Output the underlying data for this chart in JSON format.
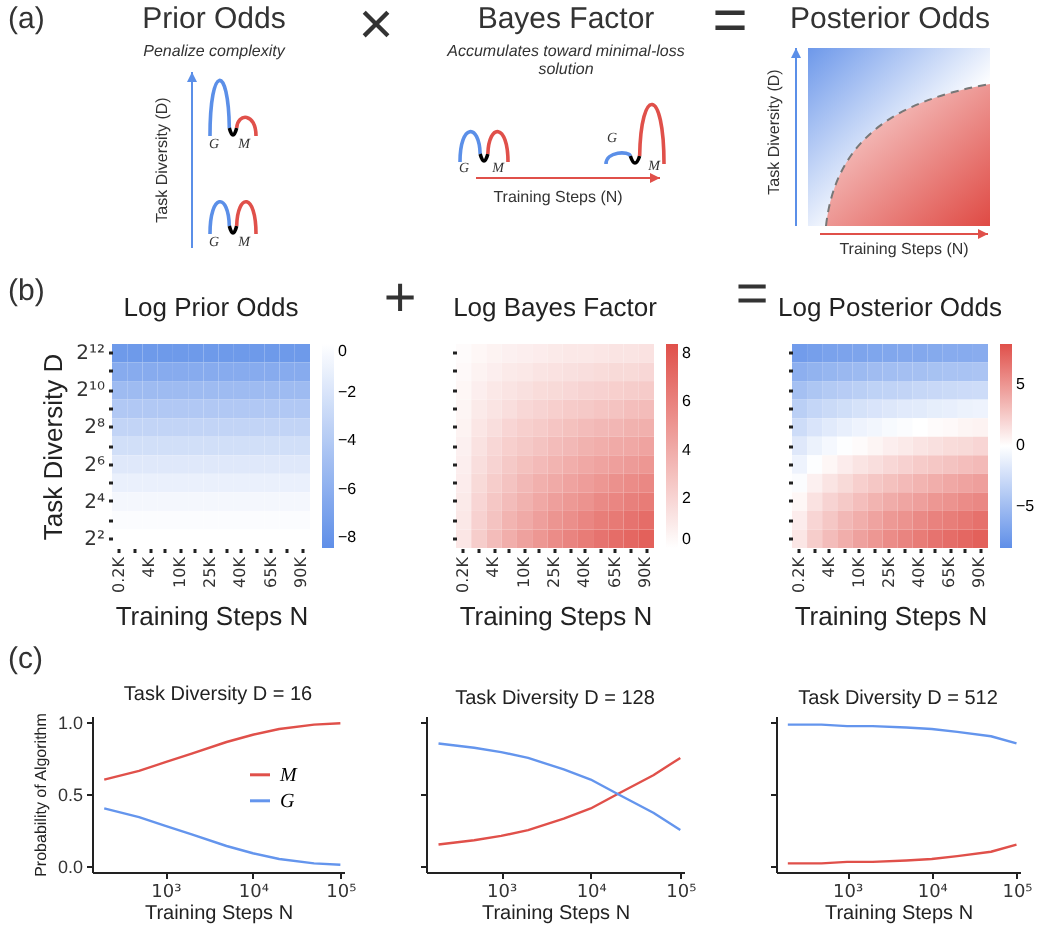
{
  "chart_data": [
    {
      "type": "other",
      "annotations": [
        "(a)",
        "Prior Odds",
        "Penalize complexity",
        "Task Diversity (D)",
        "G",
        "M",
        "G",
        "M",
        "×",
        "Bayes Factor",
        "Accumulates toward minimal-loss solution",
        "G",
        "M",
        "G",
        "M",
        "Training Steps (N)",
        "=",
        "Posterior Odds",
        "Task Diversity (D)",
        "Training Steps (N)"
      ]
    },
    {
      "type": "heatmap",
      "title": "Log Prior Odds",
      "xlabel": "Training Steps N",
      "ylabel": "Task Diversity D",
      "annotations": [
        "(b)",
        "+"
      ],
      "categories": [
        "0.2K",
        null,
        "4K",
        null,
        "10K",
        null,
        "25K",
        null,
        "40K",
        null,
        "65K",
        null,
        "90K"
      ],
      "y_categories": [
        "2¹²",
        null,
        "2¹⁰",
        null,
        "2⁸",
        null,
        "2⁶",
        null,
        "2⁴",
        null,
        "2²"
      ],
      "cells": [
        [
          -7.6,
          -7.6,
          -7.6,
          -7.6,
          -7.6,
          -7.6,
          -7.6,
          -7.6,
          -7.6,
          -7.6,
          -7.6,
          -7.6,
          -7.6
        ],
        [
          -6.3,
          -6.3,
          -6.3,
          -6.3,
          -6.3,
          -6.3,
          -6.3,
          -6.3,
          -6.3,
          -6.3,
          -6.3,
          -6.3,
          -6.3
        ],
        [
          -5.1,
          -5.1,
          -5.1,
          -5.1,
          -5.1,
          -5.1,
          -5.1,
          -5.1,
          -5.1,
          -5.1,
          -5.1,
          -5.1,
          -5.1
        ],
        [
          -4.1,
          -4.1,
          -4.1,
          -4.1,
          -4.1,
          -4.1,
          -4.1,
          -4.1,
          -4.1,
          -4.1,
          -4.1,
          -4.1,
          -4.1
        ],
        [
          -3.2,
          -3.2,
          -3.2,
          -3.2,
          -3.2,
          -3.2,
          -3.2,
          -3.2,
          -3.2,
          -3.2,
          -3.2,
          -3.2,
          -3.2
        ],
        [
          -2.4,
          -2.4,
          -2.4,
          -2.4,
          -2.4,
          -2.4,
          -2.4,
          -2.4,
          -2.4,
          -2.4,
          -2.4,
          -2.4,
          -2.4
        ],
        [
          -1.7,
          -1.7,
          -1.7,
          -1.7,
          -1.7,
          -1.7,
          -1.7,
          -1.7,
          -1.7,
          -1.7,
          -1.7,
          -1.7,
          -1.7
        ],
        [
          -1.1,
          -1.1,
          -1.1,
          -1.1,
          -1.1,
          -1.1,
          -1.1,
          -1.1,
          -1.1,
          -1.1,
          -1.1,
          -1.1,
          -1.1
        ],
        [
          -0.6,
          -0.6,
          -0.6,
          -0.6,
          -0.6,
          -0.6,
          -0.6,
          -0.6,
          -0.6,
          -0.6,
          -0.6,
          -0.6,
          -0.6
        ],
        [
          -0.2,
          -0.2,
          -0.2,
          -0.2,
          -0.2,
          -0.2,
          -0.2,
          -0.2,
          -0.2,
          -0.2,
          -0.2,
          -0.2,
          -0.2
        ],
        [
          0,
          0,
          0,
          0,
          0,
          0,
          0,
          0,
          0,
          0,
          0,
          0,
          0
        ]
      ],
      "colors": [
        "#5f8fe8",
        "#ffffff"
      ],
      "clim": [
        -8.4,
        0
      ],
      "cticks": [
        0,
        -2,
        -4,
        -6,
        -8
      ]
    },
    {
      "type": "heatmap",
      "title": "Log Bayes Factor",
      "xlabel": "Training Steps N",
      "annotations": [
        "="
      ],
      "categories": [
        "0.2K",
        null,
        "4K",
        null,
        "10K",
        null,
        "25K",
        null,
        "40K",
        null,
        "65K",
        null,
        "90K"
      ],
      "y_categories": [
        null,
        null,
        null,
        null,
        null,
        null,
        null,
        null,
        null,
        null,
        null
      ],
      "cells": [
        [
          0.2,
          0.4,
          0.6,
          0.7,
          0.8,
          0.9,
          1.0,
          1.1,
          1.1,
          1.2,
          1.3,
          1.3,
          1.4
        ],
        [
          0.3,
          0.6,
          0.8,
          1.0,
          1.1,
          1.3,
          1.4,
          1.5,
          1.6,
          1.7,
          1.8,
          1.8,
          1.9
        ],
        [
          0.4,
          0.8,
          1.1,
          1.3,
          1.5,
          1.7,
          1.8,
          1.9,
          2.1,
          2.2,
          2.3,
          2.4,
          2.5
        ],
        [
          0.5,
          1.0,
          1.3,
          1.6,
          1.9,
          2.1,
          2.3,
          2.5,
          2.6,
          2.8,
          2.9,
          3.1,
          3.2
        ],
        [
          0.6,
          1.2,
          1.6,
          2.0,
          2.3,
          2.5,
          2.8,
          3.0,
          3.2,
          3.4,
          3.5,
          3.7,
          3.8
        ],
        [
          0.7,
          1.4,
          1.9,
          2.3,
          2.6,
          2.9,
          3.2,
          3.4,
          3.7,
          3.9,
          4.1,
          4.2,
          4.4
        ],
        [
          0.8,
          1.6,
          2.1,
          2.6,
          3.0,
          3.3,
          3.6,
          3.9,
          4.2,
          4.4,
          4.6,
          4.8,
          5.0
        ],
        [
          0.9,
          1.8,
          2.4,
          2.9,
          3.4,
          3.8,
          4.1,
          4.4,
          4.7,
          5.0,
          5.3,
          5.5,
          5.7
        ],
        [
          1.0,
          2.0,
          2.7,
          3.2,
          3.7,
          4.2,
          4.6,
          4.9,
          5.2,
          5.6,
          5.8,
          6.1,
          6.3
        ],
        [
          1.1,
          2.2,
          2.9,
          3.6,
          4.1,
          4.6,
          5.1,
          5.4,
          5.8,
          6.2,
          6.4,
          6.7,
          7.0
        ],
        [
          1.2,
          2.4,
          3.2,
          3.9,
          4.5,
          5.0,
          5.5,
          5.9,
          6.3,
          6.7,
          7.0,
          7.3,
          7.6
        ]
      ],
      "colors": [
        "#ffffff",
        "#e0504a"
      ],
      "clim": [
        0,
        8.4
      ],
      "cticks": [
        0,
        2,
        4,
        6,
        8
      ]
    },
    {
      "type": "heatmap",
      "title": "Log Posterior Odds",
      "xlabel": "Training Steps N",
      "categories": [
        "0.2K",
        null,
        "4K",
        null,
        "10K",
        null,
        "25K",
        null,
        "40K",
        null,
        "65K",
        null,
        "90K"
      ],
      "y_categories": [
        null,
        null,
        null,
        null,
        null,
        null,
        null,
        null,
        null,
        null,
        null
      ],
      "cells": [
        [
          -7.4,
          -7.2,
          -7.0,
          -6.9,
          -6.8,
          -6.7,
          -6.6,
          -6.5,
          -6.5,
          -6.4,
          -6.3,
          -6.3,
          -6.2
        ],
        [
          -6.0,
          -5.7,
          -5.5,
          -5.3,
          -5.2,
          -5.0,
          -4.9,
          -4.8,
          -4.7,
          -4.6,
          -4.5,
          -4.5,
          -4.4
        ],
        [
          -4.7,
          -4.3,
          -4.0,
          -3.8,
          -3.6,
          -3.4,
          -3.3,
          -3.2,
          -3.0,
          -2.9,
          -2.8,
          -2.7,
          -2.6
        ],
        [
          -3.6,
          -3.1,
          -2.8,
          -2.5,
          -2.2,
          -2.0,
          -1.8,
          -1.6,
          -1.5,
          -1.3,
          -1.2,
          -1.0,
          -0.9
        ],
        [
          -2.6,
          -2.0,
          -1.6,
          -1.2,
          -0.9,
          -0.7,
          -0.4,
          -0.2,
          0.0,
          0.2,
          0.3,
          0.5,
          0.6
        ],
        [
          -1.7,
          -1.0,
          -0.5,
          -0.1,
          0.2,
          0.5,
          0.8,
          1.0,
          1.3,
          1.5,
          1.7,
          1.8,
          2.0
        ],
        [
          -0.9,
          -0.1,
          0.4,
          0.9,
          1.3,
          1.6,
          1.9,
          2.2,
          2.5,
          2.7,
          2.9,
          3.1,
          3.3
        ],
        [
          -0.2,
          0.7,
          1.3,
          1.8,
          2.3,
          2.7,
          3.0,
          3.3,
          3.6,
          3.9,
          4.2,
          4.4,
          4.6
        ],
        [
          0.4,
          1.4,
          2.1,
          2.6,
          3.1,
          3.6,
          4.0,
          4.3,
          4.6,
          5.0,
          5.2,
          5.5,
          5.7
        ],
        [
          0.9,
          2.0,
          2.7,
          3.4,
          3.9,
          4.4,
          4.9,
          5.2,
          5.6,
          6.0,
          6.2,
          6.5,
          6.8
        ],
        [
          1.2,
          2.4,
          3.2,
          3.9,
          4.5,
          5.0,
          5.5,
          5.9,
          6.3,
          6.7,
          7.0,
          7.3,
          7.6
        ]
      ],
      "colors": [
        "#5f8fe8",
        "#ffffff",
        "#e0504a"
      ],
      "clim": [
        -8.4,
        8.4
      ],
      "cticks": [
        -5,
        0,
        5
      ]
    },
    {
      "type": "line",
      "title": "Task Diversity D = 16",
      "xlabel": "Training Steps N",
      "ylabel": "Probability of Algorithm",
      "annotations": [
        "(c)"
      ],
      "log": "x",
      "legend": "right",
      "x": [
        200,
        500,
        1000,
        2000,
        5000,
        10000,
        20000,
        50000,
        100000
      ],
      "xlim": [
        145,
        110000
      ],
      "xticks": [
        {
          "value": 1000,
          "label": "10³"
        },
        {
          "value": 10000,
          "label": "10⁴"
        },
        {
          "value": 100000,
          "label": "10⁵"
        }
      ],
      "ylim": [
        -0.04,
        1.04
      ],
      "yticks": [
        {
          "value": 0,
          "label": "0.0"
        },
        {
          "value": 0.5,
          "label": "0.5"
        },
        {
          "value": 1,
          "label": "1.0"
        }
      ],
      "series": [
        {
          "name": "M",
          "color": "#e0504a",
          "values": [
            0.6,
            0.66,
            0.72,
            0.78,
            0.86,
            0.91,
            0.95,
            0.98,
            0.99
          ]
        },
        {
          "name": "G",
          "color": "#6495ed",
          "values": [
            0.4,
            0.34,
            0.28,
            0.22,
            0.14,
            0.09,
            0.05,
            0.02,
            0.01
          ]
        }
      ]
    },
    {
      "type": "line",
      "title": "Task Diversity D = 128",
      "xlabel": "Training Steps N",
      "log": "x",
      "tick_labels": "x",
      "x": [
        200,
        500,
        1000,
        2000,
        5000,
        10000,
        20000,
        50000,
        100000
      ],
      "xlim": [
        145,
        110000
      ],
      "xticks": [
        {
          "value": 1000,
          "label": "10³"
        },
        {
          "value": 10000,
          "label": "10⁴"
        },
        {
          "value": 100000,
          "label": "10⁵"
        }
      ],
      "ylim": [
        -0.04,
        1.04
      ],
      "yticks": [
        {
          "value": 0,
          "label": null
        },
        {
          "value": 0.5,
          "label": null
        },
        {
          "value": 1,
          "label": null
        }
      ],
      "series": [
        {
          "color": "#e0504a",
          "values": [
            0.15,
            0.18,
            0.21,
            0.25,
            0.33,
            0.4,
            0.5,
            0.63,
            0.75
          ]
        },
        {
          "color": "#6495ed",
          "values": [
            0.85,
            0.82,
            0.79,
            0.75,
            0.67,
            0.6,
            0.5,
            0.37,
            0.25
          ]
        }
      ]
    },
    {
      "type": "line",
      "title": "Task Diversity D = 512",
      "xlabel": "Training Steps N",
      "log": "x",
      "tick_labels": "x",
      "x": [
        200,
        500,
        1000,
        2000,
        5000,
        10000,
        20000,
        50000,
        100000
      ],
      "xlim": [
        145,
        110000
      ],
      "xticks": [
        {
          "value": 1000,
          "label": "10³"
        },
        {
          "value": 10000,
          "label": "10⁴"
        },
        {
          "value": 100000,
          "label": "10⁵"
        }
      ],
      "ylim": [
        -0.04,
        1.04
      ],
      "yticks": [
        {
          "value": 0,
          "label": null
        },
        {
          "value": 0.5,
          "label": null
        },
        {
          "value": 1,
          "label": null
        }
      ],
      "series": [
        {
          "color": "#e0504a",
          "values": [
            0.02,
            0.02,
            0.03,
            0.03,
            0.04,
            0.05,
            0.07,
            0.1,
            0.15
          ]
        },
        {
          "color": "#6495ed",
          "values": [
            0.98,
            0.98,
            0.97,
            0.97,
            0.96,
            0.95,
            0.93,
            0.9,
            0.85
          ]
        }
      ]
    }
  ]
}
